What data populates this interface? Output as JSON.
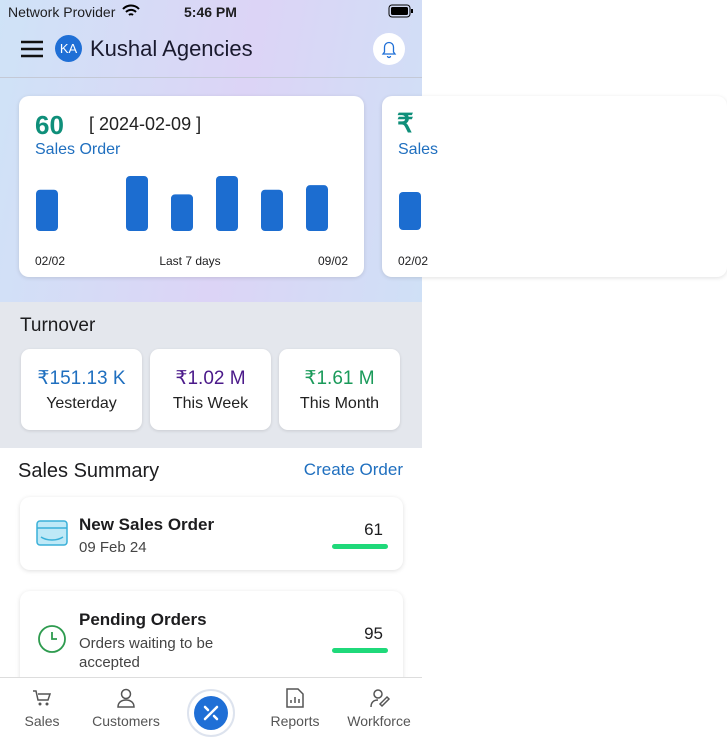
{
  "status_bar": {
    "carrier": "Network Provider",
    "time": "5:46 PM"
  },
  "header": {
    "avatar": "KA",
    "title": "Kushal Agencies"
  },
  "cards": [
    {
      "count": 60,
      "date": "[ 2024-02-09 ]",
      "label": "Sales Order",
      "daily_values": [
        9,
        0,
        12,
        8,
        12,
        9,
        10
      ],
      "ylim": [
        0,
        12
      ],
      "start": "02/02",
      "period": "Last 7 days",
      "end": "09/02"
    },
    {
      "symbol": "₹",
      "label": "Sales",
      "start": "02/02"
    }
  ],
  "turnover": {
    "title": "Turnover",
    "items": [
      {
        "value": "₹151.13 K",
        "label": "Yesterday"
      },
      {
        "value": "₹1.02 M",
        "label": "This Week"
      },
      {
        "value": "₹1.61 M",
        "label": "This Month"
      }
    ]
  },
  "sales_summary": {
    "title": "Sales Summary",
    "action": "Create Order",
    "items": [
      {
        "title": "New Sales Order",
        "subtitle": "09 Feb 24",
        "count": 61
      },
      {
        "title": "Pending Orders",
        "subtitle": "Orders waiting to be accepted",
        "count": 95
      }
    ]
  },
  "nav": {
    "items": [
      "Sales",
      "Customers",
      "Reports",
      "Workforce"
    ]
  }
}
